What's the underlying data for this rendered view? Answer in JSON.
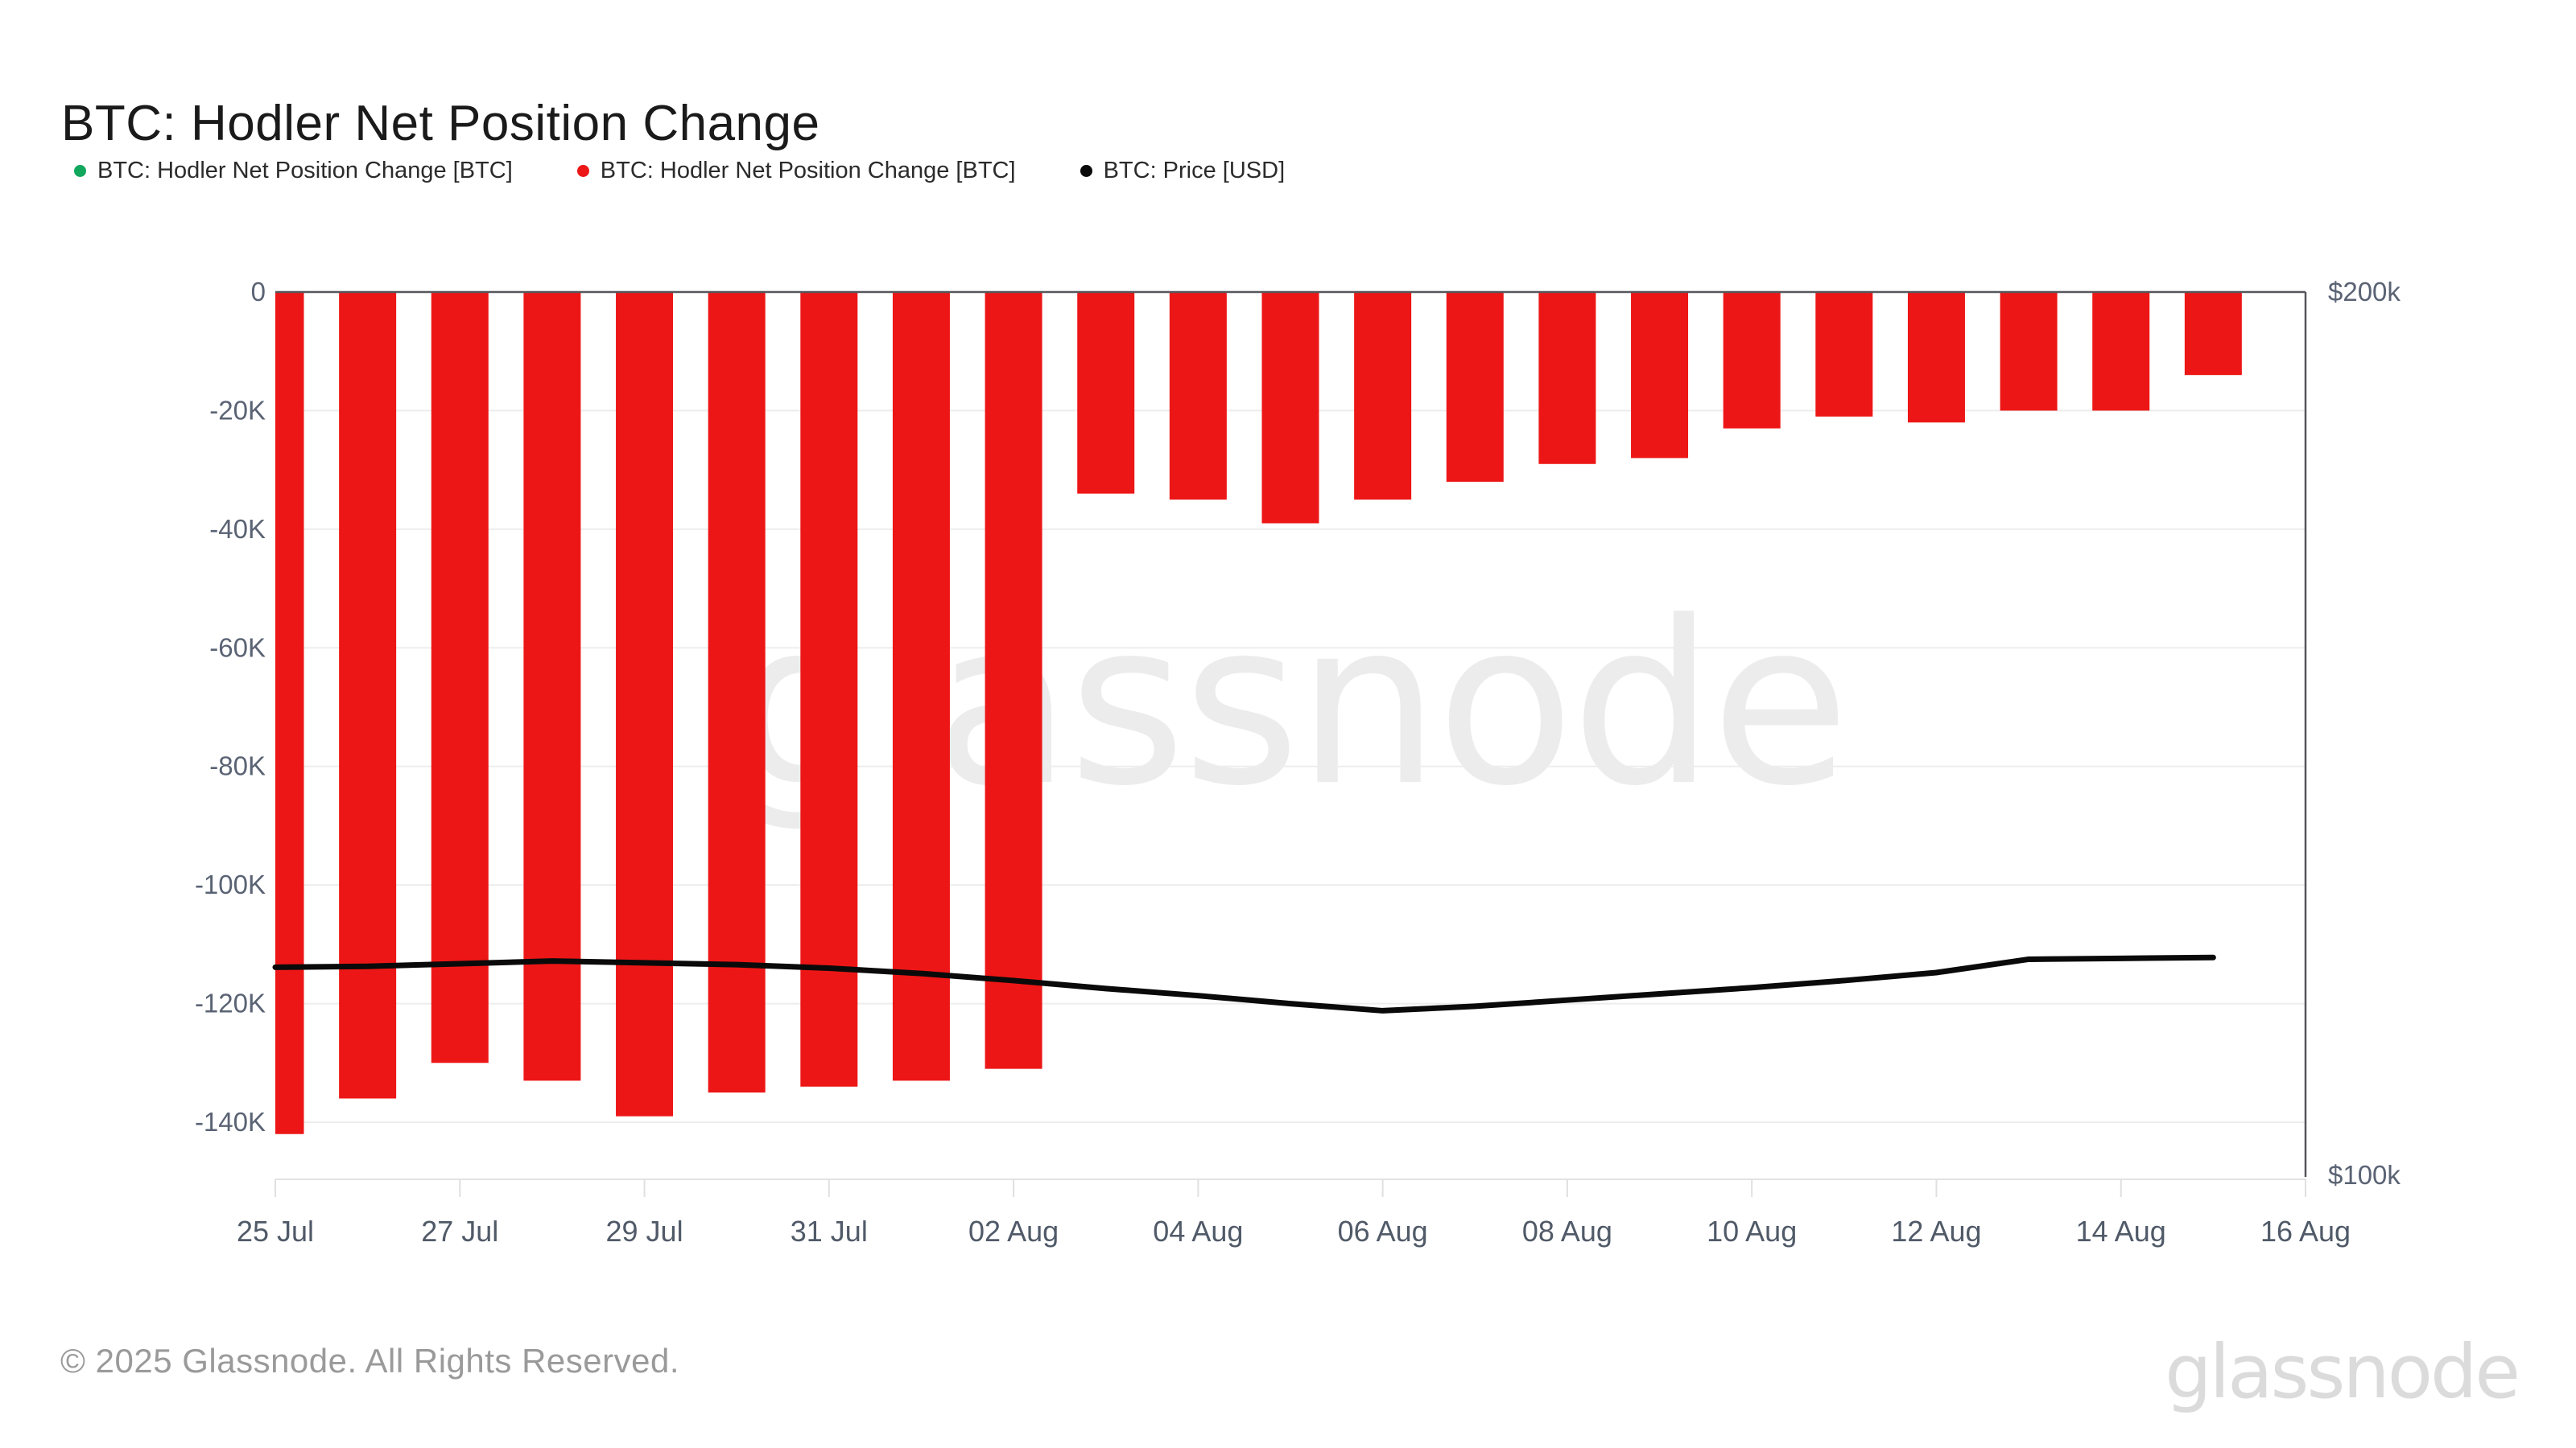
{
  "header": {
    "title": "BTC: Hodler Net Position Change"
  },
  "legend": {
    "items": [
      {
        "label": "BTC: Hodler Net Position Change [BTC]",
        "color": "#11A75C"
      },
      {
        "label": "BTC: Hodler Net Position Change [BTC]",
        "color": "#ED1616"
      },
      {
        "label": "BTC: Price [USD]",
        "color": "#0A0A0A"
      }
    ]
  },
  "chart_data": {
    "type": "bar",
    "title": "BTC: Hodler Net Position Change",
    "categories": [
      "25 Jul",
      "26 Jul",
      "27 Jul",
      "28 Jul",
      "29 Jul",
      "30 Jul",
      "31 Jul",
      "01 Aug",
      "02 Aug",
      "03 Aug",
      "04 Aug",
      "05 Aug",
      "06 Aug",
      "07 Aug",
      "08 Aug",
      "09 Aug",
      "10 Aug",
      "11 Aug",
      "12 Aug",
      "13 Aug",
      "14 Aug",
      "15 Aug"
    ],
    "series": [
      {
        "name": "BTC: Hodler Net Position Change [BTC]",
        "type": "bar",
        "axis": "left",
        "unit": "BTC (thousands)",
        "color": "#ED1616",
        "values_k": [
          -142,
          -136,
          -130,
          -133,
          -139,
          -135,
          -134,
          -133,
          -131,
          -34,
          -35,
          -39,
          -35,
          -32,
          -29,
          -28,
          -23,
          -21,
          -22,
          -20,
          -20,
          -14
        ]
      },
      {
        "name": "BTC: Price [USD]",
        "type": "line",
        "axis": "right",
        "unit": "USD (thousands)",
        "color": "#0A0A0A",
        "values_usd_k": [
          123.9,
          124.0,
          124.3,
          124.6,
          124.4,
          124.2,
          123.8,
          123.2,
          122.4,
          121.5,
          120.7,
          119.8,
          119.0,
          119.5,
          120.2,
          120.9,
          121.6,
          122.4,
          123.3,
          124.8,
          124.9,
          125.0
        ]
      }
    ],
    "left_axis": {
      "tick_labels": [
        "0",
        "-20K",
        "-40K",
        "-60K",
        "-80K",
        "-100K",
        "-120K",
        "-140K"
      ],
      "tick_values_k": [
        0,
        -20,
        -40,
        -60,
        -80,
        -100,
        -120,
        -140
      ],
      "range_k": [
        0,
        -149.6
      ]
    },
    "right_axis": {
      "tick_labels": [
        "$200k",
        "$100k"
      ],
      "tick_values_usd_k": [
        200,
        100
      ],
      "range_usd_k": [
        200,
        100
      ]
    },
    "x_axis": {
      "tick_labels": [
        "25 Jul",
        "27 Jul",
        "29 Jul",
        "31 Jul",
        "02 Aug",
        "04 Aug",
        "06 Aug",
        "08 Aug",
        "10 Aug",
        "12 Aug",
        "14 Aug",
        "16 Aug"
      ],
      "tick_day_indices": [
        0,
        2,
        4,
        6,
        8,
        10,
        12,
        14,
        16,
        18,
        20,
        22
      ]
    },
    "grid": "horizontal",
    "legend_position": "top-left",
    "watermark": "glassnode"
  },
  "footer": {
    "copyright": "© 2025 Glassnode. All Rights Reserved.",
    "logo": "glassnode"
  },
  "colors": {
    "bar_red": "#ED1616",
    "legend_green": "#11A75C",
    "price_black": "#0A0A0A",
    "grid_line": "#EDEDED",
    "axis_border": "#55575C",
    "bottom_axis": "#E3E3E3",
    "tick_mark": "#E0E0E0",
    "axis_text": "#5A6374",
    "watermark": "#ECECEC",
    "footer_text": "#9A9A9A",
    "logo_text": "#DBDBDB"
  }
}
